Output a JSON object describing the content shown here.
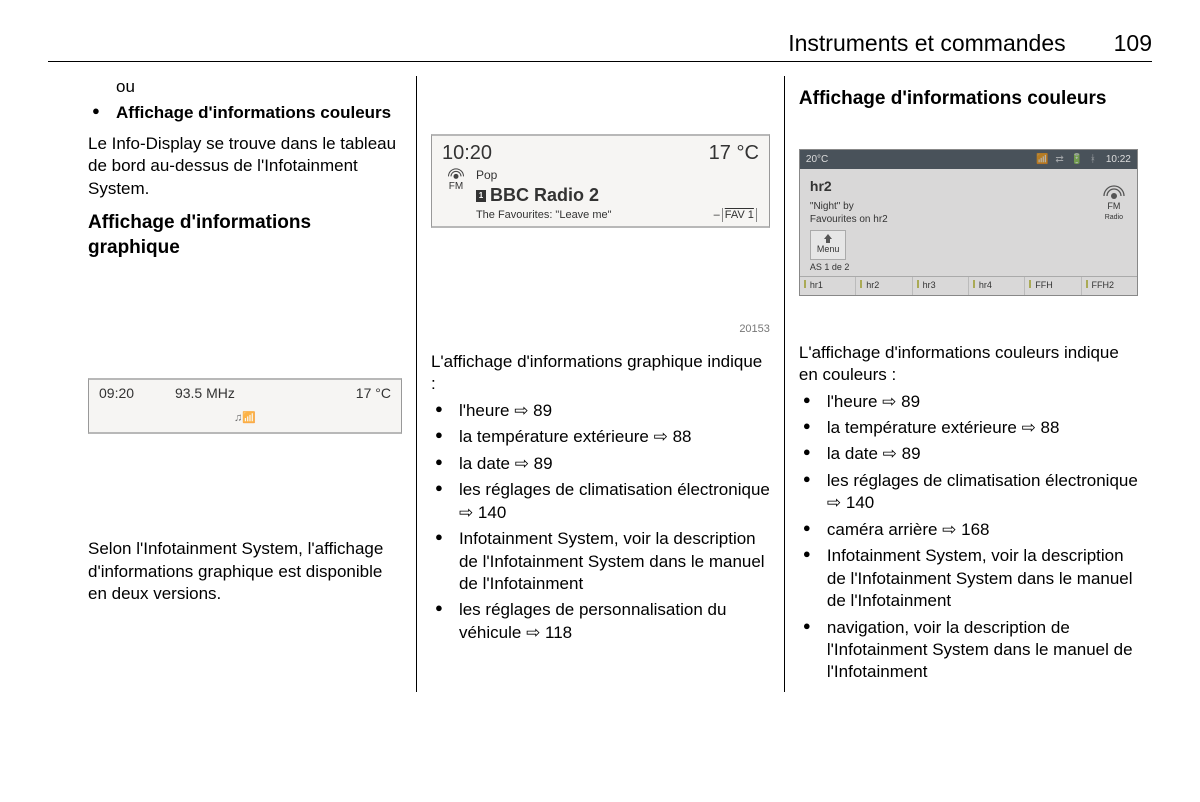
{
  "header": {
    "title": "Instruments et commandes",
    "page": "109"
  },
  "col1": {
    "ou": "ou",
    "bullet_bold": "Affichage d'informations couleurs",
    "para1": "Le Info-Display se trouve dans le tableau de bord au-dessus de l'Infotainment System.",
    "h2": "Affichage d'informations graphique",
    "lcd": {
      "time": "09:20",
      "freq": "93.5 MHz",
      "temp": "17 °C",
      "icons": "♫📶"
    },
    "para2": "Selon l'Infotainment System, l'affichage d'informations graphique est disponible en deux versions."
  },
  "col2": {
    "lcd": {
      "time": "10:20",
      "temp": "17 °C",
      "genre": "Pop",
      "preset_no": "1",
      "station": "BBC Radio 2",
      "track": "The Favourites: \"Leave me\"",
      "fm_label": "FM",
      "fav": "FAV 1",
      "dash": "–"
    },
    "fig_id": "20153",
    "intro": "L'affichage d'informations graphique indique :",
    "items": [
      {
        "text": "l'heure ",
        "ref": "89"
      },
      {
        "text": "la température extérieure ",
        "ref": "88"
      },
      {
        "text": "la date ",
        "ref": "89"
      },
      {
        "text": "les réglages de climatisation électronique ",
        "ref": "140"
      },
      {
        "text": "Infotainment System, voir la description de l'Infotainment System dans le manuel de l'Infotainment"
      },
      {
        "text": "les réglages de personnalisation du véhicule ",
        "ref": "118"
      }
    ]
  },
  "col3": {
    "h2": "Affichage d'informations couleurs",
    "cd": {
      "temp": "20°C",
      "time": "10:22",
      "icons": "📶 ⇄ 🔋 ᚼ",
      "station": "hr2",
      "line1": "\"Night\" by",
      "line2": "Favourites on hr2",
      "fm_label": "FM",
      "fm_sub": "Radio",
      "menu_label": "Menu",
      "as": "AS 1 de 2",
      "presets": [
        "hr1",
        "hr2",
        "hr3",
        "hr4",
        "FFH",
        "FFH2"
      ]
    },
    "intro": "L'affichage d'informations couleurs indique en couleurs :",
    "items": [
      {
        "text": "l'heure ",
        "ref": "89"
      },
      {
        "text": "la température extérieure ",
        "ref": "88"
      },
      {
        "text": "la date ",
        "ref": "89"
      },
      {
        "text": "les réglages de climatisation électronique ",
        "ref": "140"
      },
      {
        "text": "caméra arrière ",
        "ref": "168"
      },
      {
        "text": "Infotainment System, voir la description de l'Infotainment System dans le manuel de l'Infotainment"
      },
      {
        "text": "navigation, voir la description de l'Infotainment System dans le manuel de l'Infotainment"
      }
    ]
  },
  "ref_arrow": "⇨"
}
